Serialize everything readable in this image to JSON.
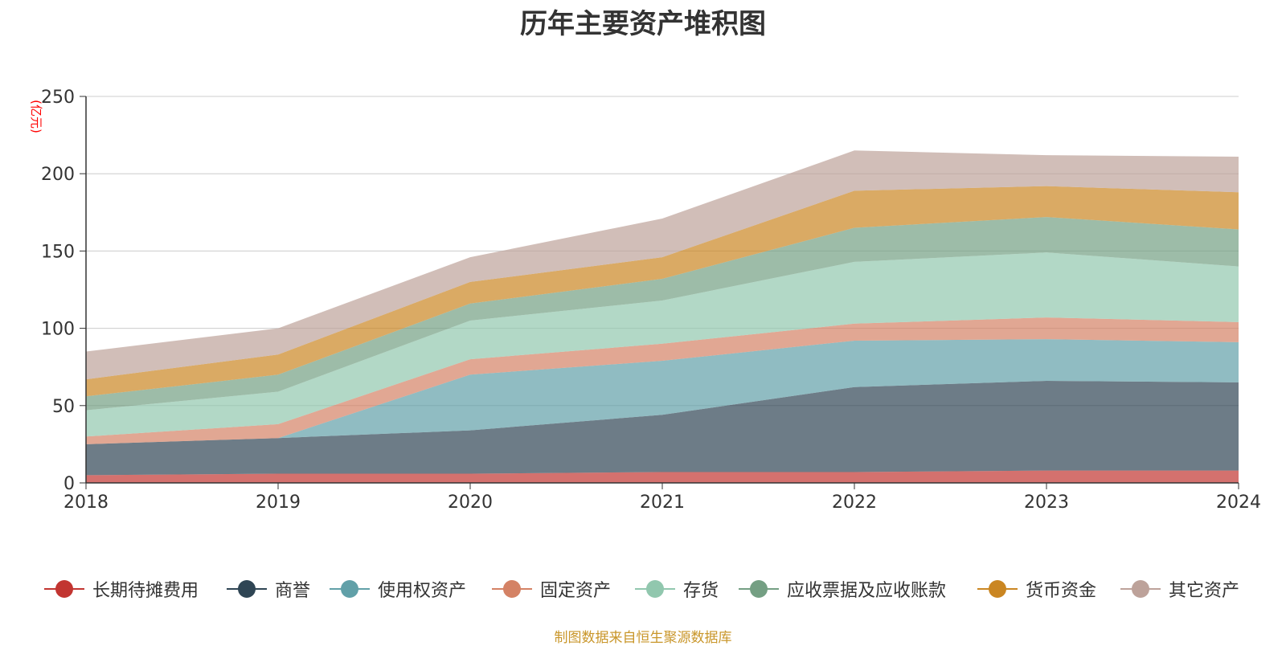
{
  "chart_data": {
    "type": "area",
    "stacked": true,
    "title": "历年主要资产堆积图",
    "unit_label": "(亿元)",
    "x": [
      "2018",
      "2019",
      "2020",
      "2021",
      "2022",
      "2023",
      "2024"
    ],
    "ylim": [
      0,
      250
    ],
    "yticks": [
      "0",
      "50",
      "100",
      "150",
      "200",
      "250"
    ],
    "grid": true,
    "legend_position": "bottom",
    "series": [
      {
        "name": "长期待摊费用",
        "color": "#c23531",
        "values": [
          5,
          6,
          6,
          7,
          7,
          8,
          8
        ]
      },
      {
        "name": "商誉",
        "color": "#2f4554",
        "values": [
          20,
          23,
          28,
          37,
          55,
          58,
          57
        ]
      },
      {
        "name": "使用权资产",
        "color": "#61a0a8",
        "values": [
          0,
          0,
          36,
          35,
          30,
          27,
          26
        ]
      },
      {
        "name": "固定资产",
        "color": "#d48265",
        "values": [
          5,
          9,
          10,
          11,
          11,
          14,
          13
        ]
      },
      {
        "name": "存货",
        "color": "#91c7ae",
        "values": [
          17,
          21,
          25,
          28,
          40,
          42,
          36
        ]
      },
      {
        "name": "应收票据及应收账款",
        "color": "#749f83",
        "values": [
          9,
          11,
          11,
          14,
          22,
          23,
          24
        ]
      },
      {
        "name": "货币资金",
        "color": "#ca8622",
        "values": [
          11,
          13,
          14,
          14,
          24,
          20,
          24
        ]
      },
      {
        "name": "其它资产",
        "color": "#bda29a",
        "values": [
          18,
          17,
          16,
          25,
          26,
          20,
          23
        ]
      }
    ]
  },
  "footer": {
    "source_note": "制图数据来自恒生聚源数据库"
  }
}
